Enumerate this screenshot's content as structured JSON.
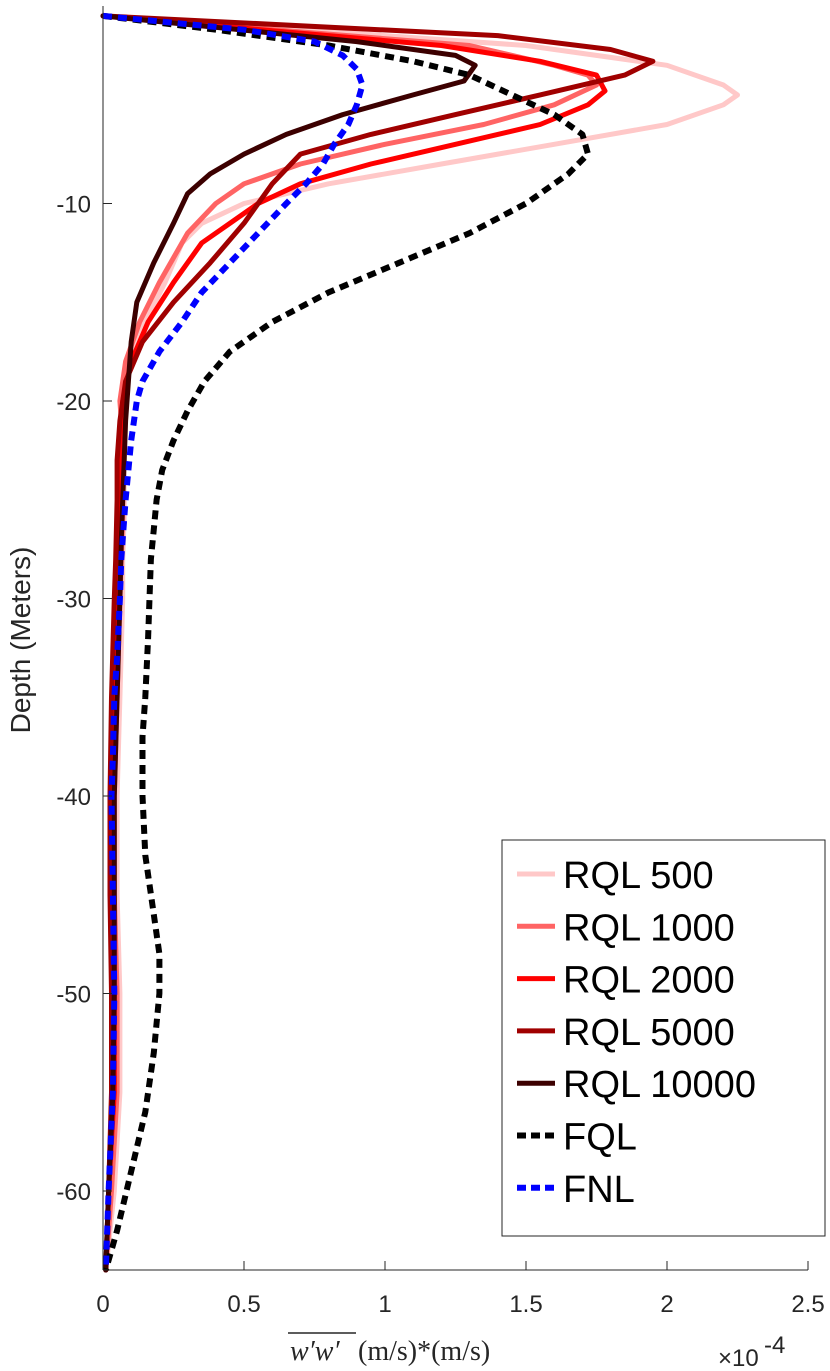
{
  "chart_data": {
    "type": "line",
    "title": "",
    "ylabel": "Depth (Meters)",
    "xlabel": "w′w′ (m/s)*(m/s)",
    "xlabel_overline": "w′w′",
    "xlabel_units": " (m/s)*(m/s)",
    "x_exponent_label": "×10",
    "x_exponent_power": "-4",
    "xlim": [
      0,
      2.5
    ],
    "ylim": [
      -64,
      0
    ],
    "xticks": [
      0,
      0.5,
      1,
      1.5,
      2,
      2.5
    ],
    "xtick_labels": [
      "0",
      "0.5",
      "1",
      "1.5",
      "2",
      "2.5"
    ],
    "yticks": [
      -10,
      -20,
      -30,
      -40,
      -50,
      -60
    ],
    "ytick_labels": [
      "-10",
      "-20",
      "-30",
      "-40",
      "-50",
      "-60"
    ],
    "grid": false,
    "legend_position": "bottom-right",
    "series": [
      {
        "name": "RQL 500",
        "color": "#ffc8c8",
        "dash": false,
        "points": [
          [
            0,
            -0.5
          ],
          [
            1.5,
            -2
          ],
          [
            2.0,
            -3
          ],
          [
            2.2,
            -4
          ],
          [
            2.25,
            -4.5
          ],
          [
            2.2,
            -5
          ],
          [
            2.0,
            -6
          ],
          [
            1.6,
            -7
          ],
          [
            1.2,
            -8
          ],
          [
            0.8,
            -9
          ],
          [
            0.5,
            -10
          ],
          [
            0.35,
            -11
          ],
          [
            0.28,
            -12
          ],
          [
            0.22,
            -14
          ],
          [
            0.15,
            -16
          ],
          [
            0.09,
            -18
          ],
          [
            0.07,
            -20
          ],
          [
            0.07,
            -22
          ],
          [
            0.075,
            -24
          ],
          [
            0.075,
            -26
          ],
          [
            0.07,
            -28
          ],
          [
            0.07,
            -30
          ],
          [
            0.06,
            -35
          ],
          [
            0.05,
            -40
          ],
          [
            0.05,
            -45
          ],
          [
            0.06,
            -50
          ],
          [
            0.06,
            -55
          ],
          [
            0.04,
            -60
          ],
          [
            0.01,
            -64
          ]
        ]
      },
      {
        "name": "RQL 1000",
        "color": "#ff6464",
        "dash": false,
        "points": [
          [
            0,
            -0.5
          ],
          [
            1.3,
            -2
          ],
          [
            1.6,
            -3
          ],
          [
            1.72,
            -3.5
          ],
          [
            1.75,
            -4
          ],
          [
            1.6,
            -5
          ],
          [
            1.35,
            -6
          ],
          [
            1.0,
            -7
          ],
          [
            0.7,
            -8
          ],
          [
            0.5,
            -9
          ],
          [
            0.4,
            -10
          ],
          [
            0.3,
            -11.5
          ],
          [
            0.2,
            -14
          ],
          [
            0.13,
            -16
          ],
          [
            0.08,
            -18
          ],
          [
            0.06,
            -20
          ],
          [
            0.07,
            -22
          ],
          [
            0.07,
            -24
          ],
          [
            0.07,
            -26
          ],
          [
            0.065,
            -28
          ],
          [
            0.06,
            -30
          ],
          [
            0.05,
            -35
          ],
          [
            0.04,
            -40
          ],
          [
            0.04,
            -45
          ],
          [
            0.05,
            -50
          ],
          [
            0.05,
            -55
          ],
          [
            0.03,
            -60
          ],
          [
            0.01,
            -64
          ]
        ]
      },
      {
        "name": "RQL 2000",
        "color": "#ff0000",
        "dash": false,
        "points": [
          [
            0,
            -0.5
          ],
          [
            1.2,
            -2
          ],
          [
            1.55,
            -2.8
          ],
          [
            1.75,
            -3.5
          ],
          [
            1.78,
            -4.3
          ],
          [
            1.72,
            -5
          ],
          [
            1.55,
            -6
          ],
          [
            1.25,
            -7
          ],
          [
            0.95,
            -8
          ],
          [
            0.7,
            -9
          ],
          [
            0.55,
            -10
          ],
          [
            0.45,
            -11
          ],
          [
            0.35,
            -12
          ],
          [
            0.25,
            -14
          ],
          [
            0.16,
            -16
          ],
          [
            0.1,
            -18
          ],
          [
            0.07,
            -20
          ],
          [
            0.06,
            -22
          ],
          [
            0.06,
            -24
          ],
          [
            0.06,
            -26
          ],
          [
            0.055,
            -28
          ],
          [
            0.05,
            -30
          ],
          [
            0.04,
            -35
          ],
          [
            0.03,
            -40
          ],
          [
            0.03,
            -45
          ],
          [
            0.04,
            -50
          ],
          [
            0.04,
            -55
          ],
          [
            0.02,
            -60
          ],
          [
            0.01,
            -64
          ]
        ]
      },
      {
        "name": "RQL 5000",
        "color": "#a00000",
        "dash": false,
        "points": [
          [
            0,
            -0.5
          ],
          [
            1.4,
            -1.5
          ],
          [
            1.8,
            -2.2
          ],
          [
            1.95,
            -2.8
          ],
          [
            1.85,
            -3.5
          ],
          [
            1.55,
            -4.5
          ],
          [
            1.25,
            -5.5
          ],
          [
            0.95,
            -6.5
          ],
          [
            0.7,
            -7.5
          ],
          [
            0.6,
            -9
          ],
          [
            0.5,
            -11
          ],
          [
            0.38,
            -13
          ],
          [
            0.25,
            -15
          ],
          [
            0.14,
            -17
          ],
          [
            0.08,
            -19
          ],
          [
            0.06,
            -21
          ],
          [
            0.05,
            -23
          ],
          [
            0.05,
            -25
          ],
          [
            0.045,
            -28
          ],
          [
            0.04,
            -30
          ],
          [
            0.03,
            -35
          ],
          [
            0.025,
            -40
          ],
          [
            0.025,
            -45
          ],
          [
            0.03,
            -50
          ],
          [
            0.03,
            -55
          ],
          [
            0.02,
            -60
          ],
          [
            0.01,
            -64
          ]
        ]
      },
      {
        "name": "RQL 10000",
        "color": "#3c0000",
        "dash": false,
        "points": [
          [
            0,
            -0.5
          ],
          [
            0.9,
            -1.8
          ],
          [
            1.25,
            -2.5
          ],
          [
            1.32,
            -3.0
          ],
          [
            1.28,
            -3.8
          ],
          [
            1.1,
            -4.5
          ],
          [
            0.85,
            -5.5
          ],
          [
            0.65,
            -6.5
          ],
          [
            0.5,
            -7.5
          ],
          [
            0.38,
            -8.5
          ],
          [
            0.3,
            -9.5
          ],
          [
            0.25,
            -11
          ],
          [
            0.18,
            -13
          ],
          [
            0.12,
            -15
          ],
          [
            0.1,
            -17
          ],
          [
            0.09,
            -19
          ],
          [
            0.08,
            -21
          ],
          [
            0.075,
            -23
          ],
          [
            0.07,
            -25
          ],
          [
            0.065,
            -27
          ],
          [
            0.06,
            -30
          ],
          [
            0.05,
            -35
          ],
          [
            0.04,
            -40
          ],
          [
            0.04,
            -45
          ],
          [
            0.04,
            -50
          ],
          [
            0.035,
            -55
          ],
          [
            0.02,
            -60
          ],
          [
            0.01,
            -64
          ]
        ]
      },
      {
        "name": "FQL",
        "color": "#000000",
        "dash": true,
        "points": [
          [
            0,
            -0.5
          ],
          [
            0.4,
            -1.2
          ],
          [
            0.8,
            -2
          ],
          [
            1.1,
            -2.8
          ],
          [
            1.3,
            -3.5
          ],
          [
            1.45,
            -4.5
          ],
          [
            1.6,
            -5.5
          ],
          [
            1.7,
            -6.5
          ],
          [
            1.72,
            -7.5
          ],
          [
            1.65,
            -8.5
          ],
          [
            1.5,
            -10
          ],
          [
            1.3,
            -11.5
          ],
          [
            1.05,
            -13
          ],
          [
            0.8,
            -14.5
          ],
          [
            0.6,
            -16
          ],
          [
            0.45,
            -17.5
          ],
          [
            0.36,
            -19
          ],
          [
            0.3,
            -20.5
          ],
          [
            0.25,
            -22
          ],
          [
            0.21,
            -23.5
          ],
          [
            0.19,
            -25
          ],
          [
            0.18,
            -26.5
          ],
          [
            0.17,
            -28
          ],
          [
            0.165,
            -30
          ],
          [
            0.16,
            -32
          ],
          [
            0.15,
            -35
          ],
          [
            0.14,
            -37
          ],
          [
            0.14,
            -40
          ],
          [
            0.15,
            -43
          ],
          [
            0.18,
            -46
          ],
          [
            0.2,
            -48
          ],
          [
            0.2,
            -50
          ],
          [
            0.18,
            -53
          ],
          [
            0.15,
            -56
          ],
          [
            0.1,
            -59
          ],
          [
            0.05,
            -62
          ],
          [
            0.01,
            -64
          ]
        ]
      },
      {
        "name": "FNL",
        "color": "#0000ff",
        "dash": true,
        "points": [
          [
            0,
            -0.5
          ],
          [
            0.5,
            -1.2
          ],
          [
            0.75,
            -1.8
          ],
          [
            0.85,
            -2.5
          ],
          [
            0.9,
            -3.2
          ],
          [
            0.92,
            -4
          ],
          [
            0.9,
            -5
          ],
          [
            0.87,
            -6
          ],
          [
            0.82,
            -7
          ],
          [
            0.78,
            -8
          ],
          [
            0.72,
            -9
          ],
          [
            0.65,
            -10
          ],
          [
            0.55,
            -11.5
          ],
          [
            0.45,
            -13
          ],
          [
            0.35,
            -14.5
          ],
          [
            0.28,
            -16
          ],
          [
            0.2,
            -17.5
          ],
          [
            0.14,
            -19
          ],
          [
            0.12,
            -20
          ],
          [
            0.1,
            -22
          ],
          [
            0.09,
            -23.5
          ],
          [
            0.08,
            -25
          ],
          [
            0.07,
            -27
          ],
          [
            0.065,
            -28
          ],
          [
            0.06,
            -30
          ],
          [
            0.05,
            -33
          ],
          [
            0.04,
            -35
          ],
          [
            0.035,
            -38
          ],
          [
            0.03,
            -40
          ],
          [
            0.035,
            -45
          ],
          [
            0.04,
            -50
          ],
          [
            0.035,
            -55
          ],
          [
            0.02,
            -60
          ],
          [
            0.01,
            -64
          ]
        ]
      }
    ]
  }
}
